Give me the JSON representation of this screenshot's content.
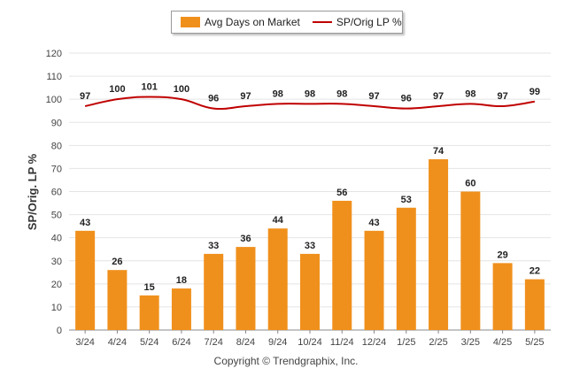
{
  "chart_data": {
    "type": "bar",
    "categories": [
      "3/24",
      "4/24",
      "5/24",
      "6/24",
      "7/24",
      "8/24",
      "9/24",
      "10/24",
      "11/24",
      "12/24",
      "1/25",
      "2/25",
      "3/25",
      "4/25",
      "5/25"
    ],
    "series": [
      {
        "name": "Avg Days on Market",
        "type": "bar",
        "color": "#f0901c",
        "values": [
          43,
          26,
          15,
          18,
          33,
          36,
          44,
          33,
          56,
          43,
          53,
          74,
          60,
          29,
          22
        ]
      },
      {
        "name": "SP/Orig LP %",
        "type": "line",
        "color": "#c00000",
        "values": [
          97,
          100,
          101,
          100,
          96,
          97,
          98,
          98,
          98,
          97,
          96,
          97,
          98,
          97,
          99
        ]
      }
    ],
    "ylabel": "SP/Orig. LP %",
    "ylim": [
      0,
      120
    ],
    "yticks": [
      0,
      10,
      20,
      30,
      40,
      50,
      60,
      70,
      80,
      90,
      100,
      110,
      120
    ],
    "grid": true,
    "legend_position": "top-center"
  },
  "footer": {
    "copyright": "Copyright © Trendgraphix, Inc."
  },
  "colors": {
    "bar": "#f0901c",
    "line": "#c00000",
    "grid": "#e4e4e4",
    "axis": "#888888"
  }
}
